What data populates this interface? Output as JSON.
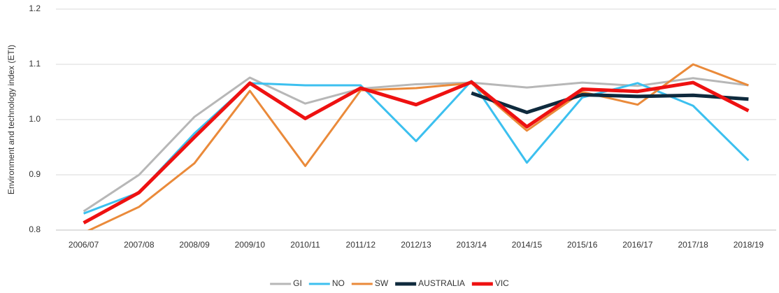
{
  "chart_data": {
    "type": "line",
    "y_label": "Environment and technology index (ETI)",
    "categories": [
      "2006/07",
      "2007/08",
      "2008/09",
      "2009/10",
      "2010/11",
      "2011/12",
      "2012/13",
      "2013/14",
      "2014/15",
      "2015/16",
      "2016/17",
      "2017/18",
      "2018/19"
    ],
    "series": [
      {
        "name": "GI",
        "color": "#b7b7b7",
        "width": 3,
        "values": [
          0.834,
          0.9,
          1.005,
          1.076,
          1.029,
          1.056,
          1.064,
          1.067,
          1.058,
          1.067,
          1.061,
          1.075,
          1.062
        ]
      },
      {
        "name": "NO",
        "color": "#3cc0ef",
        "width": 3,
        "values": [
          0.83,
          0.868,
          0.975,
          1.066,
          1.062,
          1.062,
          0.961,
          1.07,
          0.922,
          1.04,
          1.066,
          1.025,
          0.926
        ]
      },
      {
        "name": "SW",
        "color": "#ea8a3a",
        "width": 3,
        "values": [
          0.795,
          0.842,
          0.921,
          1.052,
          0.916,
          1.053,
          1.057,
          1.066,
          0.98,
          1.05,
          1.027,
          1.1,
          1.062
        ]
      },
      {
        "name": "AUSTRALIA",
        "color": "#0f2a3d",
        "width": 5,
        "values": [
          null,
          null,
          null,
          null,
          null,
          null,
          null,
          1.048,
          1.013,
          1.045,
          1.042,
          1.044,
          1.037
        ]
      },
      {
        "name": "VIC",
        "color": "#ee1111",
        "width": 5,
        "values": [
          0.813,
          0.868,
          0.968,
          1.066,
          1.002,
          1.057,
          1.027,
          1.068,
          0.987,
          1.055,
          1.051,
          1.067,
          1.016
        ]
      }
    ],
    "ylim": [
      0.8,
      1.2
    ],
    "yticks": [
      0.8,
      0.9,
      {
        "value": 1,
        "label": "1.0"
      },
      1.1,
      1.2
    ],
    "grid": true,
    "legend": "bottom"
  }
}
